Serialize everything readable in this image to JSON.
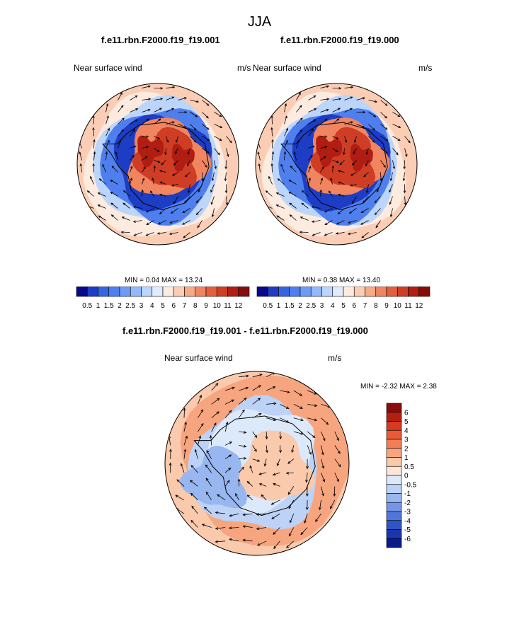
{
  "page": {
    "title": "JJA"
  },
  "chart_data": [
    {
      "type": "heatmap",
      "projection": "south-polar-stereographic",
      "title": "f.e11.rbn.F2000.f19_f19.001",
      "left_label": "Near surface wind",
      "right_label": "m/s",
      "min_label": "MIN =   0.04 MAX =  13.24",
      "levels": [
        "0.5",
        "1",
        "1.5",
        "2",
        "2.5",
        "3",
        "4",
        "5",
        "6",
        "7",
        "8",
        "9",
        "10",
        "11",
        "12"
      ],
      "colorbar": {
        "orientation": "horizontal",
        "colors": [
          "#08088a",
          "#1c3dc4",
          "#3366e0",
          "#4f7fef",
          "#6e9bf5",
          "#94b9fa",
          "#bcd5fb",
          "#e0ecfc",
          "#fdebe0",
          "#fbcdb5",
          "#f6aa88",
          "#f08560",
          "#e3603f",
          "#cf3d24",
          "#b11d12",
          "#870c09"
        ]
      }
    },
    {
      "type": "heatmap",
      "projection": "south-polar-stereographic",
      "title": "f.e11.rbn.F2000.f19_f19.000",
      "left_label": "Near surface wind",
      "right_label": "m/s",
      "min_label": "MIN =   0.38 MAX =  13.40",
      "levels": [
        "0.5",
        "1",
        "1.5",
        "2",
        "2.5",
        "3",
        "4",
        "5",
        "6",
        "7",
        "8",
        "9",
        "10",
        "11",
        "12"
      ],
      "colorbar": {
        "orientation": "horizontal",
        "colors": [
          "#08088a",
          "#1c3dc4",
          "#3366e0",
          "#4f7fef",
          "#6e9bf5",
          "#94b9fa",
          "#bcd5fb",
          "#e0ecfc",
          "#fdebe0",
          "#fbcdb5",
          "#f6aa88",
          "#f08560",
          "#e3603f",
          "#cf3d24",
          "#b11d12",
          "#870c09"
        ]
      }
    },
    {
      "type": "heatmap",
      "projection": "south-polar-stereographic",
      "title": "f.e11.rbn.F2000.f19_f19.001 - f.e11.rbn.F2000.f19_f19.000",
      "left_label": "Near surface wind",
      "right_label": "m/s",
      "min_label": "MIN =  -2.32 MAX =   2.38",
      "levels": [
        "6",
        "5",
        "4",
        "3",
        "2",
        "1",
        "0.5",
        "0",
        "-0.5",
        "-1",
        "-2",
        "-3",
        "-4",
        "-5",
        "-6"
      ],
      "colorbar": {
        "orientation": "vertical",
        "colors": [
          "#8a0b0b",
          "#b3200f",
          "#d63a1f",
          "#ea5a36",
          "#f27e58",
          "#f7a57f",
          "#fbc9ab",
          "#fde6d6",
          "#dce9fa",
          "#bcd2f6",
          "#98b6ef",
          "#7397e6",
          "#4f76db",
          "#2f55c9",
          "#1a36ad",
          "#0a1a8a"
        ]
      }
    }
  ]
}
